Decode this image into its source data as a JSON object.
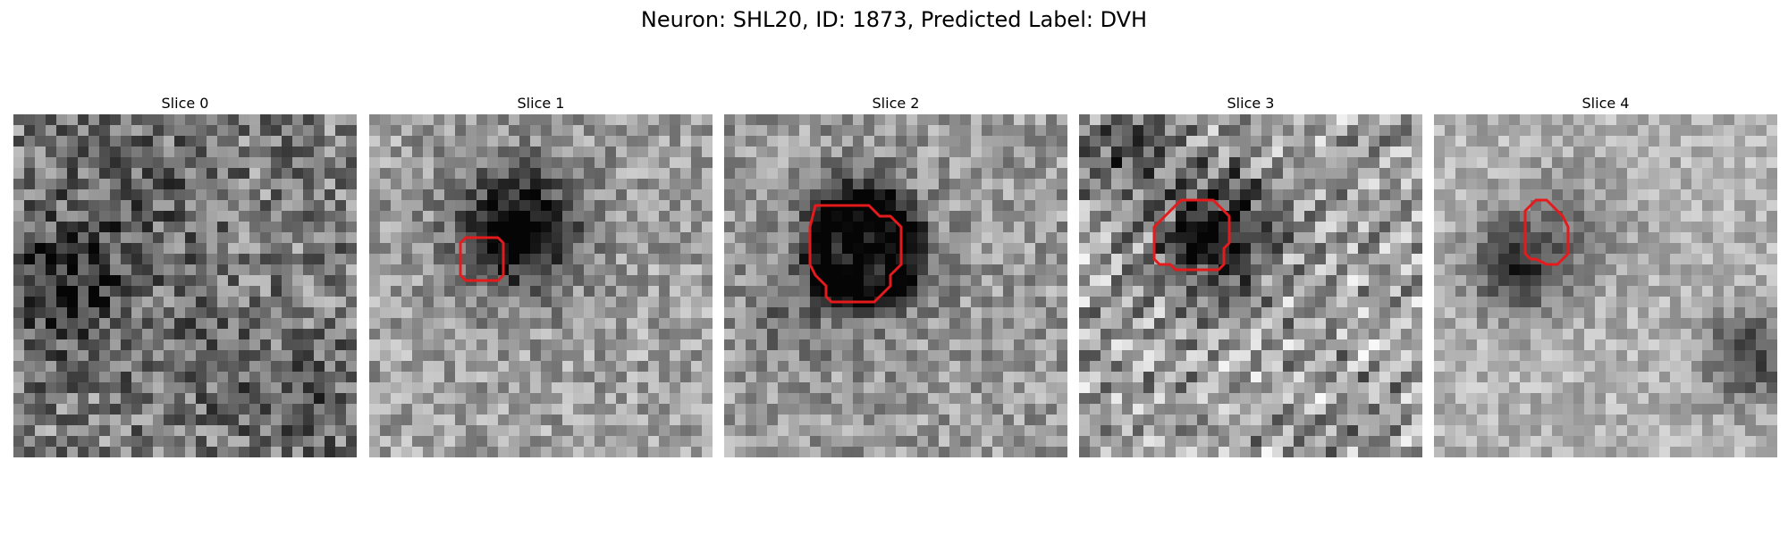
{
  "figure": {
    "title": "Neuron: SHL20, ID: 1873, Predicted Label: DVH"
  },
  "slices": [
    {
      "title": "Slice 0",
      "roi": false
    },
    {
      "title": "Slice 1",
      "roi": true
    },
    {
      "title": "Slice 2",
      "roi": true
    },
    {
      "title": "Slice 3",
      "roi": true
    },
    {
      "title": "Slice 4",
      "roi": true
    }
  ],
  "colors": {
    "roi_outline": "#e41a1c",
    "background": "#ffffff"
  }
}
